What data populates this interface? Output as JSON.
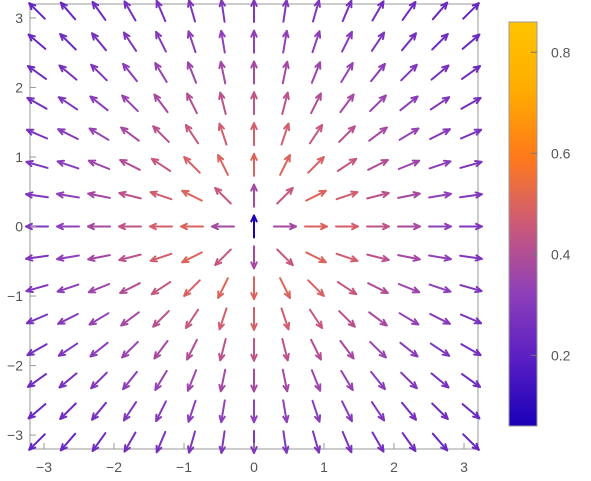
{
  "chart_data": {
    "type": "vector-field",
    "title": "",
    "xlabel": "",
    "ylabel": "",
    "xlim": [
      -3.2,
      3.2
    ],
    "ylim": [
      -3.2,
      3.2
    ],
    "grid": false,
    "frame": true,
    "xticks": [
      -3,
      -2,
      -1,
      0,
      1,
      2,
      3
    ],
    "xtick_labels": [
      "−3",
      "−2",
      "−1",
      "0",
      "1",
      "2",
      "3"
    ],
    "yticks": [
      -3,
      -2,
      -1,
      0,
      1,
      2,
      3
    ],
    "ytick_labels": [
      "−3",
      "−2",
      "−1",
      "0",
      "1",
      "2",
      "3"
    ],
    "field": {
      "description": "radially outward unit-direction vectors, colored by magnitude",
      "grid_range": [
        -3.1,
        3.1
      ],
      "grid_count": 15,
      "direction": "radial-outward",
      "magnitude_model": "r / (1 + r^2)",
      "color_by": "magnitude"
    },
    "colorbar": {
      "position": "right",
      "range": [
        0.06,
        0.86
      ],
      "ticks": [
        0.2,
        0.4,
        0.6,
        0.8
      ],
      "tick_labels": [
        "0.2",
        "0.4",
        "0.6",
        "0.8"
      ],
      "gradient": [
        "#1a00b8",
        "#5a1fc4",
        "#9040b8",
        "#cc5a78",
        "#ff7a1a",
        "#ffad00",
        "#ffc400"
      ]
    }
  }
}
